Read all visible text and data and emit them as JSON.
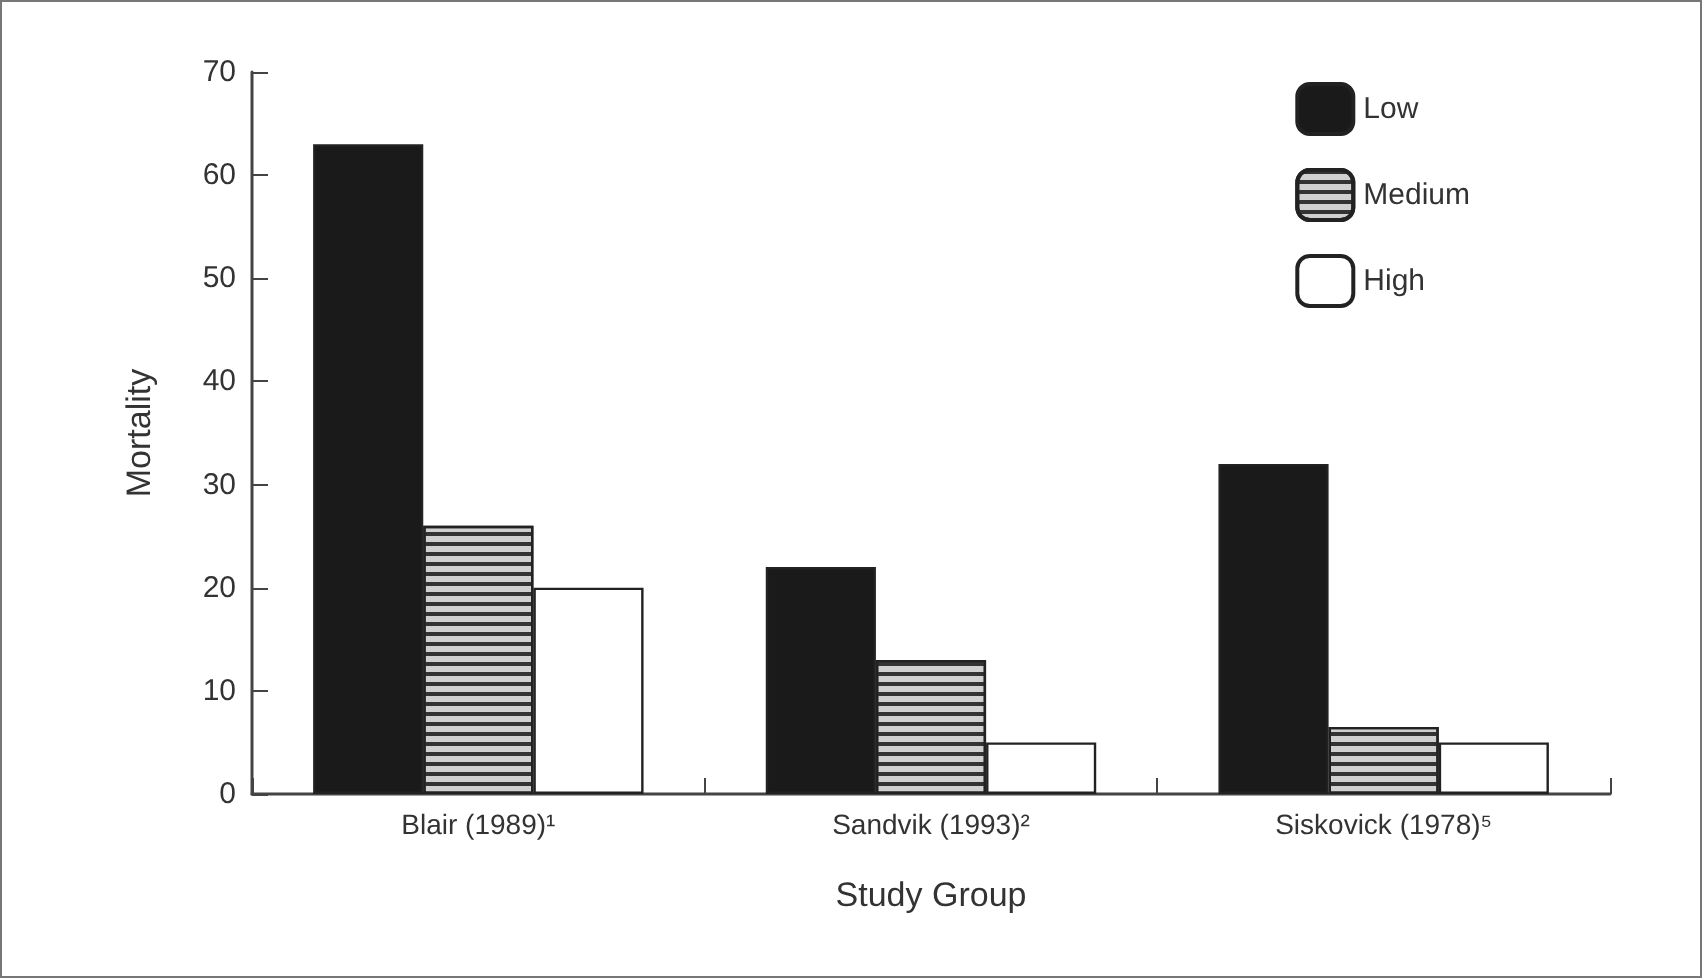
{
  "chart_data": {
    "type": "bar",
    "xlabel": "Study Group",
    "ylabel": "Mortality",
    "categories": [
      "Blair (1989)¹",
      "Sandvik (1993)²",
      "Siskovick (1978)⁵"
    ],
    "series": [
      {
        "name": "Low",
        "color": "#1a1a1a",
        "values": [
          63,
          22,
          32
        ]
      },
      {
        "name": "Medium",
        "color": "#d0d0d0",
        "values": [
          26,
          13,
          6.5
        ]
      },
      {
        "name": "High",
        "color": "#ffffff",
        "values": [
          20,
          5,
          5
        ]
      }
    ],
    "ylim": [
      0,
      70
    ],
    "yticks": [
      0,
      10,
      20,
      30,
      40,
      50,
      60,
      70
    ],
    "grid": false,
    "legend": "top right"
  }
}
